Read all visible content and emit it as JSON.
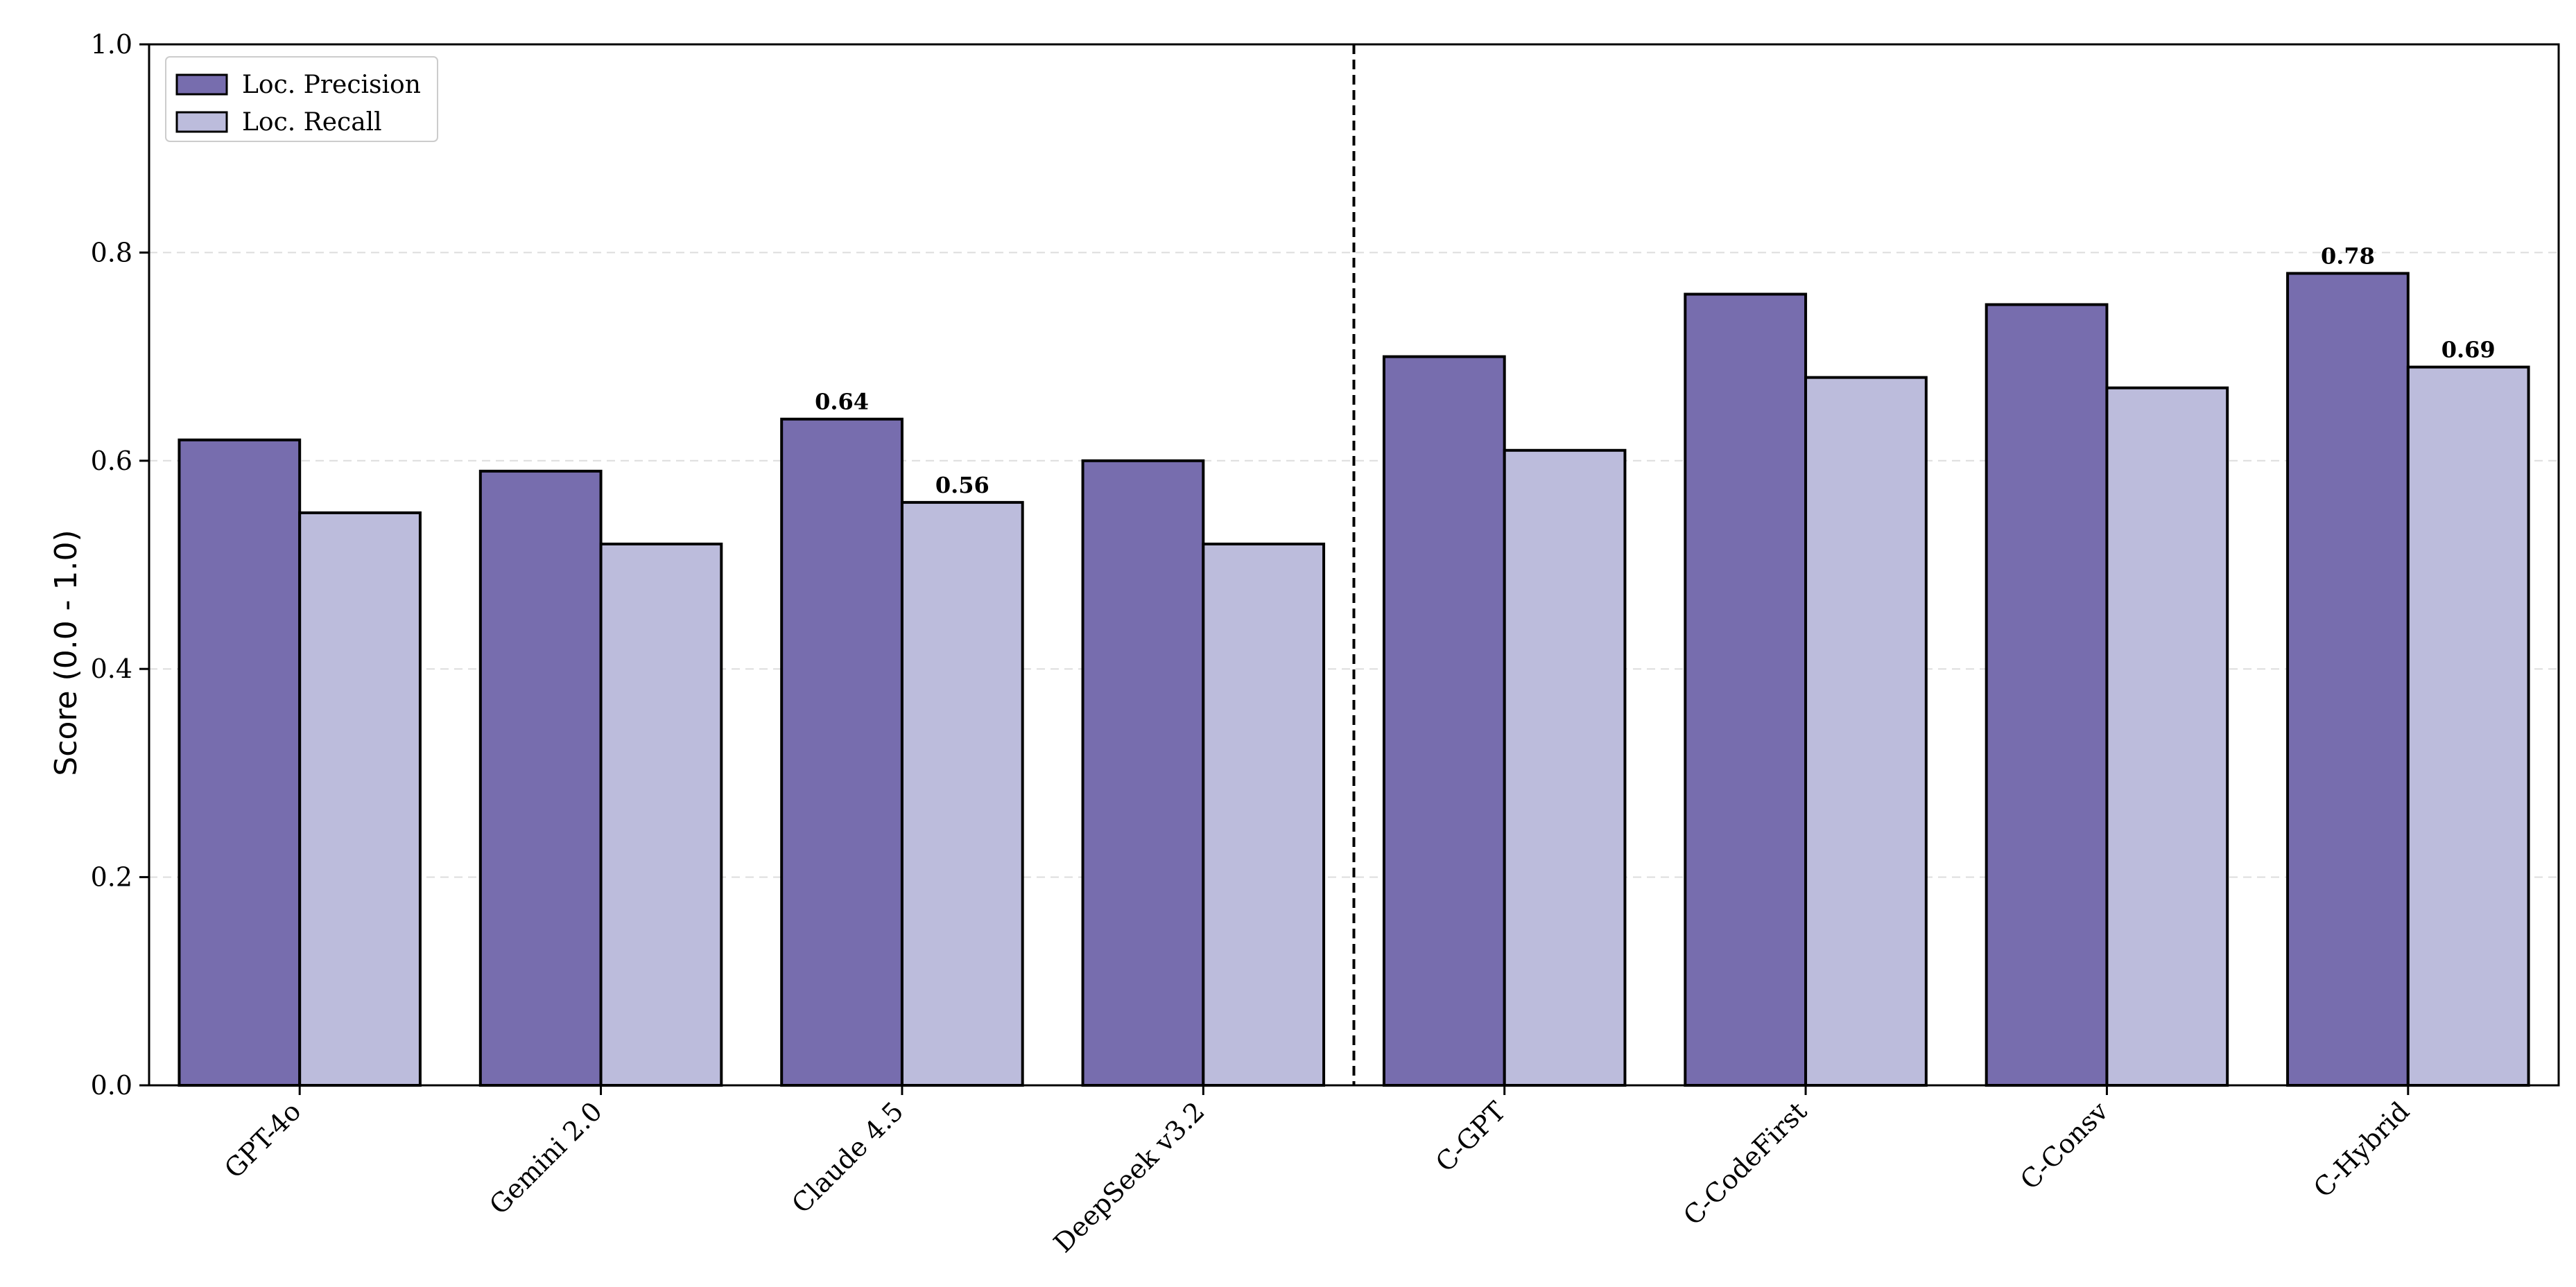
{
  "chart_data": {
    "type": "bar",
    "categories": [
      "GPT-4o",
      "Gemini 2.0",
      "Claude 4.5",
      "DeepSeek v3.2",
      "C-GPT",
      "C-CodeFirst",
      "C-Consv",
      "C-Hybrid"
    ],
    "series": [
      {
        "name": "Loc. Precision",
        "values": [
          0.62,
          0.59,
          0.64,
          0.6,
          0.7,
          0.76,
          0.75,
          0.78
        ],
        "color": "#776dae"
      },
      {
        "name": "Loc. Recall",
        "values": [
          0.55,
          0.52,
          0.56,
          0.52,
          0.61,
          0.68,
          0.67,
          0.69
        ],
        "color": "#bcbcdc"
      }
    ],
    "data_labels": [
      {
        "series": 0,
        "category": 2,
        "text": "0.64"
      },
      {
        "series": 1,
        "category": 2,
        "text": "0.56"
      },
      {
        "series": 0,
        "category": 7,
        "text": "0.78"
      },
      {
        "series": 1,
        "category": 7,
        "text": "0.69"
      }
    ],
    "title": "",
    "xlabel": "",
    "ylabel": "Score (0.0 - 1.0)",
    "ylim": [
      0,
      1.0
    ],
    "yticks": [
      "0.0",
      "0.2",
      "0.4",
      "0.6",
      "0.8",
      "1.0"
    ],
    "grid": "horizontal dashed",
    "legend_position": "top-left",
    "separator_after_category": 3
  }
}
